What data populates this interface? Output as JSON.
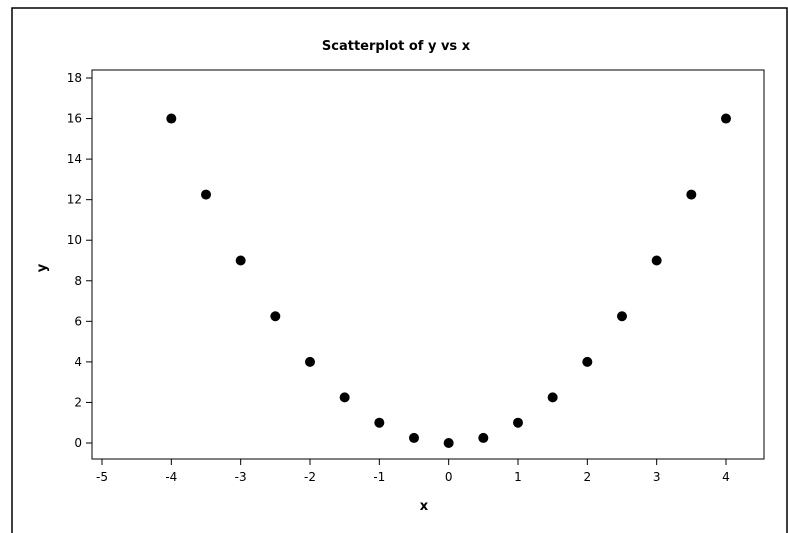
{
  "chart_data": {
    "type": "scatter",
    "title": "Scatterplot of y vs x",
    "xlabel": "x",
    "ylabel": "y",
    "xlim": [
      -5,
      4
    ],
    "ylim": [
      0,
      18
    ],
    "xticks": [
      -5,
      -4,
      -3,
      -2,
      -1,
      0,
      1,
      2,
      3,
      4
    ],
    "yticks": [
      0,
      2,
      4,
      6,
      8,
      10,
      12,
      14,
      16,
      18
    ],
    "grid": false,
    "legend": "none",
    "marker_color": "#000000",
    "series": [
      {
        "x": [
          -4,
          -3.5,
          -3,
          -2.5,
          -2,
          -1.5,
          -1,
          -0.5,
          0,
          0.5,
          1,
          1.5,
          2,
          2.5,
          3,
          3.5,
          4
        ],
        "y": [
          16,
          12.25,
          9,
          6.25,
          4,
          2.25,
          1,
          0.25,
          0,
          0.25,
          1,
          2.25,
          4,
          6.25,
          9,
          12.25,
          16
        ]
      }
    ]
  }
}
